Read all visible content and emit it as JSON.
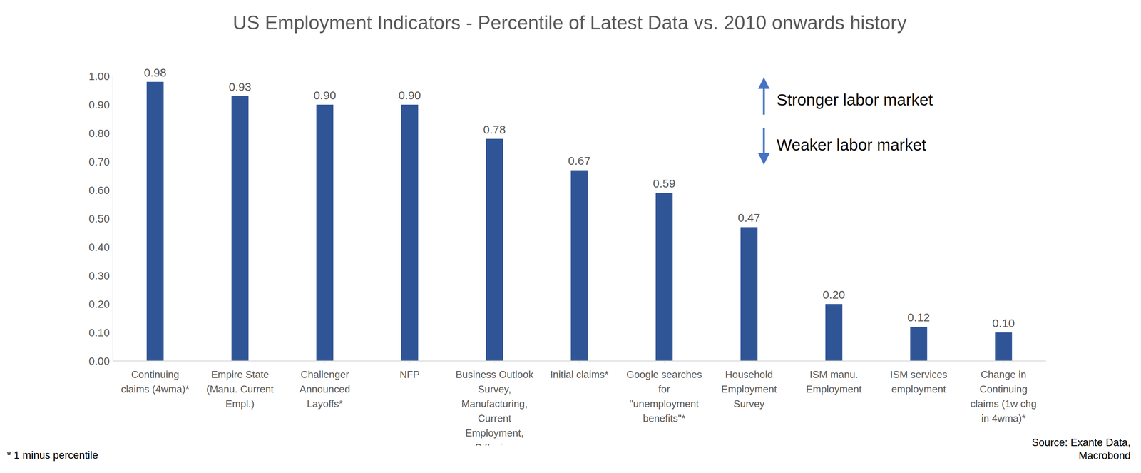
{
  "chart_data": {
    "type": "bar",
    "title": "US Employment Indicators - Percentile of Latest Data vs. 2010 onwards history",
    "categories": [
      "Continuing claims (4wma)*",
      "Empire State (Manu. Current Empl.)",
      "Challenger Announced Layoffs*",
      "NFP",
      "Business Outlook Survey, Manufacturing, Current Employment, Diffusion",
      "Initial claims*",
      "Google searches for \"unemployment benefits\"*",
      "Household Employment Survey",
      "ISM manu. Employment",
      "ISM services employment",
      "Change in Continuing claims (1w chg in 4wma)*"
    ],
    "values": [
      0.98,
      0.93,
      0.9,
      0.9,
      0.78,
      0.67,
      0.59,
      0.47,
      0.2,
      0.12,
      0.1
    ],
    "value_labels": [
      "0.98",
      "0.93",
      "0.90",
      "0.90",
      "0.78",
      "0.67",
      "0.59",
      "0.47",
      "0.20",
      "0.12",
      "0.10"
    ],
    "data_labels": true,
    "color": "#2f5597",
    "ylim": [
      0,
      1
    ],
    "yticks": [
      {
        "value": 0,
        "label": "0.00"
      },
      {
        "value": 0.1,
        "label": "0.10"
      },
      {
        "value": 0.2,
        "label": "0.20"
      },
      {
        "value": 0.3,
        "label": "0.30"
      },
      {
        "value": 0.4,
        "label": "0.40"
      },
      {
        "value": 0.5,
        "label": "0.50"
      },
      {
        "value": 0.6,
        "label": "0.60"
      },
      {
        "value": 0.7,
        "label": "0.70"
      },
      {
        "value": 0.8,
        "label": "0.80"
      },
      {
        "value": 0.9,
        "label": "0.90"
      },
      {
        "value": 1,
        "label": "1.00"
      }
    ],
    "grid": false,
    "annotations": [
      "Stronger labor market",
      "Weaker labor market"
    ],
    "footnote": "* 1 minus percentile",
    "source": "Source: Exante Data, Macrobond"
  }
}
